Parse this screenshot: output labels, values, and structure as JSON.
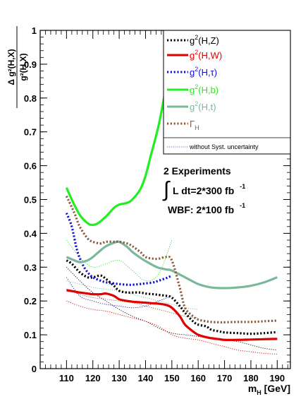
{
  "chart_data": {
    "type": "line",
    "title": "",
    "xlabel": {
      "main": "m",
      "sub": "H",
      "unit": " [GeV]"
    },
    "ylabel": {
      "numerator": "Δ g²(H,X)",
      "denominator": "g²(H,X)"
    },
    "xlim": [
      100,
      195
    ],
    "ylim": [
      0,
      1
    ],
    "xticks": [
      110,
      120,
      130,
      140,
      150,
      160,
      170,
      180,
      190
    ],
    "yticks": [
      0,
      0.1,
      0.2,
      0.3,
      0.4,
      0.5,
      0.6,
      0.7,
      0.8,
      0.9,
      1
    ],
    "ytick_labels": [
      "0",
      "0.1",
      "0.2",
      "0.3",
      "0.4",
      "0.5",
      "0.6",
      "0.7",
      "0.8",
      "0.9",
      "1"
    ],
    "grid": false,
    "legend_placement": "top-right",
    "series": [
      {
        "name": "g²(H,Z)",
        "label": {
          "base": "g",
          "sup": "2",
          "rest": "(H,Z)"
        },
        "color": "#000000",
        "style": "dotted",
        "x": [
          110,
          112,
          115,
          118,
          120,
          123,
          125,
          128,
          130,
          133,
          135,
          138,
          140,
          143,
          145,
          148,
          150,
          153,
          155,
          158,
          160,
          163,
          165,
          168,
          170,
          175,
          180,
          185,
          190
        ],
        "y": [
          0.32,
          0.31,
          0.285,
          0.27,
          0.27,
          0.275,
          0.265,
          0.245,
          0.23,
          0.225,
          0.225,
          0.225,
          0.222,
          0.22,
          0.218,
          0.215,
          0.21,
          0.185,
          0.165,
          0.14,
          0.13,
          0.125,
          0.115,
          0.11,
          0.107,
          0.105,
          0.103,
          0.105,
          0.108
        ]
      },
      {
        "name": "g²(H,W)",
        "label": {
          "base": "g",
          "sup": "2",
          "rest": "(H,W)"
        },
        "color": "#e00000",
        "style": "solid",
        "x": [
          110,
          113,
          115,
          118,
          120,
          123,
          125,
          128,
          130,
          133,
          135,
          138,
          140,
          143,
          145,
          148,
          150,
          153,
          155,
          158,
          160,
          163,
          165,
          168,
          170,
          175,
          180,
          185,
          190
        ],
        "y": [
          0.232,
          0.228,
          0.225,
          0.222,
          0.22,
          0.22,
          0.222,
          0.215,
          0.205,
          0.2,
          0.198,
          0.196,
          0.195,
          0.193,
          0.192,
          0.188,
          0.18,
          0.155,
          0.13,
          0.11,
          0.1,
          0.093,
          0.09,
          0.087,
          0.085,
          0.085,
          0.086,
          0.087,
          0.088
        ]
      },
      {
        "name": "g²(H,τ)",
        "label": {
          "base": "g",
          "sup": "2",
          "rest": "(H,τ)"
        },
        "color": "#1010d0",
        "style": "dotted",
        "x": [
          110,
          112,
          114,
          116,
          118,
          120,
          123,
          125,
          128,
          130,
          133,
          135,
          138,
          140,
          143,
          145,
          148,
          150
        ],
        "y": [
          0.46,
          0.42,
          0.35,
          0.31,
          0.285,
          0.27,
          0.26,
          0.255,
          0.252,
          0.25,
          0.248,
          0.248,
          0.25,
          0.252,
          0.255,
          0.26,
          0.268,
          0.275
        ]
      },
      {
        "name": "g²(H,b)",
        "label": {
          "base": "g",
          "sup": "2",
          "rest": "(H,b)"
        },
        "color": "#22ee22",
        "style": "solid",
        "x": [
          110,
          112,
          115,
          118,
          120,
          122,
          125,
          128,
          130,
          133,
          135,
          138,
          140,
          142,
          145,
          148,
          150
        ],
        "y": [
          0.535,
          0.5,
          0.455,
          0.43,
          0.425,
          0.43,
          0.45,
          0.475,
          0.485,
          0.49,
          0.5,
          0.53,
          0.57,
          0.63,
          0.72,
          0.84,
          0.9
        ]
      },
      {
        "name": "g²(H,t)",
        "label": {
          "base": "g",
          "sup": "2",
          "rest": "(H,t)"
        },
        "color": "#7ab89a",
        "style": "solid",
        "x": [
          110,
          113,
          115,
          118,
          120,
          123,
          125,
          128,
          130,
          133,
          135,
          138,
          140,
          143,
          145,
          148,
          150,
          155,
          160,
          165,
          170,
          175,
          180,
          185,
          190
        ],
        "y": [
          0.33,
          0.32,
          0.315,
          0.32,
          0.33,
          0.35,
          0.362,
          0.372,
          0.375,
          0.36,
          0.345,
          0.328,
          0.318,
          0.305,
          0.298,
          0.293,
          0.29,
          0.27,
          0.25,
          0.24,
          0.238,
          0.24,
          0.245,
          0.255,
          0.27
        ]
      },
      {
        "name": "Γ_H",
        "label": {
          "base": "Γ",
          "sub": "H",
          "rest": ""
        },
        "color": "#8b5a3c",
        "style": "dotted",
        "x": [
          110,
          113,
          115,
          118,
          120,
          123,
          125,
          128,
          130,
          133,
          135,
          138,
          140,
          143,
          145,
          148,
          150,
          153,
          155,
          158,
          160,
          163,
          165,
          168,
          170,
          175,
          180,
          185,
          190
        ],
        "y": [
          0.51,
          0.46,
          0.42,
          0.385,
          0.375,
          0.37,
          0.375,
          0.375,
          0.375,
          0.37,
          0.362,
          0.345,
          0.33,
          0.325,
          0.325,
          0.33,
          0.32,
          0.24,
          0.18,
          0.155,
          0.145,
          0.14,
          0.138,
          0.137,
          0.137,
          0.138,
          0.138,
          0.14,
          0.142
        ]
      }
    ],
    "thin_series": [
      {
        "color": "#000000",
        "x": [
          110,
          115,
          120,
          125,
          130,
          135,
          140,
          145,
          150,
          155,
          160,
          165,
          170,
          175,
          180,
          185,
          190
        ],
        "y": [
          0.3,
          0.26,
          0.225,
          0.2,
          0.175,
          0.155,
          0.14,
          0.12,
          0.105,
          0.1,
          0.095,
          0.09,
          0.085,
          0.08,
          0.07,
          0.06,
          0.055
        ]
      },
      {
        "color": "#e00000",
        "x": [
          110,
          115,
          120,
          125,
          130,
          135,
          140,
          145,
          150,
          155,
          160,
          165,
          170,
          175,
          180,
          185,
          190
        ],
        "y": [
          0.2,
          0.185,
          0.175,
          0.17,
          0.16,
          0.15,
          0.14,
          0.125,
          0.1,
          0.09,
          0.085,
          0.075,
          0.065,
          0.055,
          0.05,
          0.045,
          0.043
        ]
      },
      {
        "color": "#1010d0",
        "x": [
          110,
          115,
          120,
          125,
          130,
          135,
          140,
          145,
          150
        ],
        "y": [
          0.27,
          0.215,
          0.2,
          0.19,
          0.185,
          0.18,
          0.185,
          0.2,
          0.215
        ]
      },
      {
        "color": "#22ee22",
        "x": [
          110,
          115,
          120,
          125,
          130,
          135,
          140,
          145,
          150
        ],
        "y": [
          0.38,
          0.33,
          0.3,
          0.31,
          0.32,
          0.29,
          0.26,
          0.28,
          0.38
        ]
      },
      {
        "color": "#7ab89a",
        "x": [
          110,
          115,
          120,
          125,
          130,
          135,
          140,
          145,
          150,
          155,
          160
        ],
        "y": [
          0.26,
          0.25,
          0.24,
          0.235,
          0.23,
          0.22,
          0.21,
          0.2,
          0.19,
          0.18,
          0.175
        ]
      },
      {
        "color": "#8b5a3c",
        "x": [
          110,
          115,
          120,
          125,
          130,
          135,
          140,
          145,
          150,
          155,
          160
        ],
        "y": [
          0.235,
          0.22,
          0.21,
          0.205,
          0.2,
          0.195,
          0.185,
          0.175,
          0.165,
          0.155,
          0.15
        ]
      }
    ],
    "legend_extra": "without Syst. uncertainty",
    "annotation": {
      "line1": "2 Experiments",
      "line2_integral": "∫",
      "line2_text": "L dt=2*300 fb",
      "line2_sup": "-1",
      "line3_text": "WBF: 2*100 fb",
      "line3_sup": "-1"
    }
  }
}
